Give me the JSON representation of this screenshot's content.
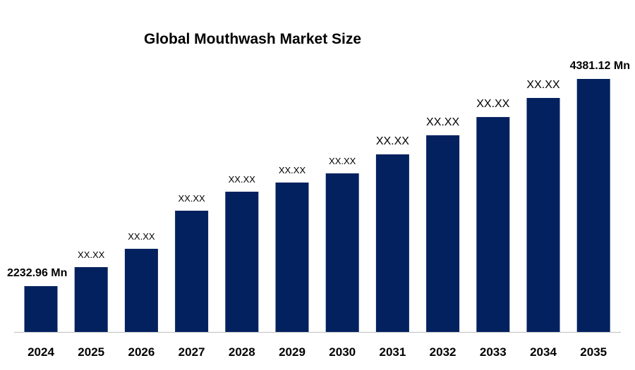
{
  "chart_data": {
    "type": "bar",
    "title": "Global Mouthwash Market Size",
    "xlabel": "",
    "ylabel": "",
    "categories": [
      "2024",
      "2025",
      "2026",
      "2027",
      "2028",
      "2029",
      "2030",
      "2031",
      "2032",
      "2033",
      "2034",
      "2035"
    ],
    "values": [
      2232.96,
      2430,
      2620,
      3015,
      3212,
      3307,
      3402,
      3599,
      3797,
      3986,
      4184,
      4381.12
    ],
    "data_labels": [
      "2232.96 Mn",
      "XX.XX",
      "XX.XX",
      "XX.XX",
      "XX.XX",
      "XX.XX",
      "XX.XX",
      "XX.XX",
      "XX.XX",
      "XX.XX",
      "XX.XX",
      "4381.12 Mn"
    ],
    "bar_color": "#03215F",
    "grid": false,
    "legend": "none",
    "y_axis_visible": false
  }
}
